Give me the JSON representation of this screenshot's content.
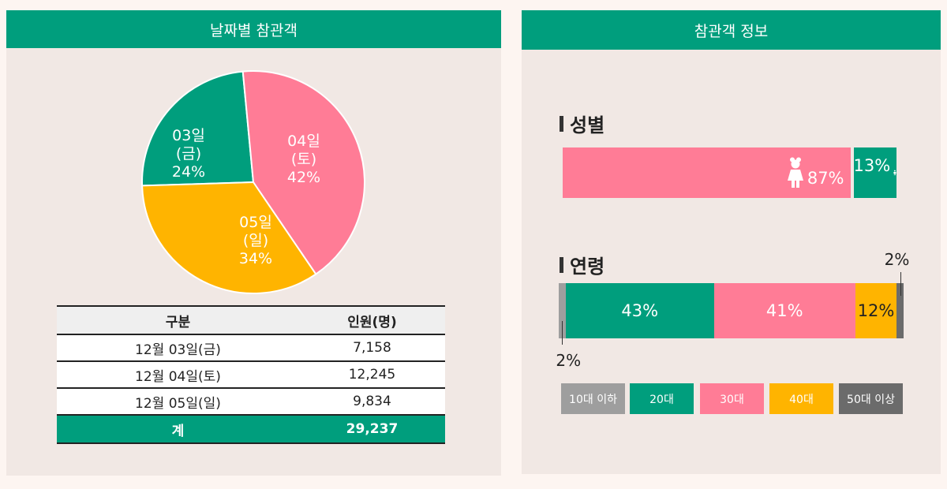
{
  "left_panel": {
    "title": "날짜별 참관객"
  },
  "right_panel": {
    "title": "참관객 정보"
  },
  "colors": {
    "green": "#009e7d",
    "pink": "#ff7c96",
    "yellow": "#ffb400",
    "gray_light": "#9e9e9e",
    "gray_dark": "#6b6b6b"
  },
  "chart_data": [
    {
      "type": "pie",
      "slices": [
        {
          "label": "03일\n(금)\n24%",
          "value": 24,
          "color": "#009e7d"
        },
        {
          "label": "04일\n(토)\n42%",
          "value": 42,
          "color": "#ff7c96"
        },
        {
          "label": "05일\n(일)\n34%",
          "value": 34,
          "color": "#ffb400"
        }
      ]
    },
    {
      "type": "bar",
      "title": "성별",
      "stacked": true,
      "segments": [
        {
          "label": "87%",
          "value": 87,
          "color": "#ff7c96",
          "icon": "female-person-icon"
        },
        {
          "label": "13%",
          "value": 13,
          "color": "#009e7d",
          "icon": "male-person-icon"
        }
      ]
    },
    {
      "type": "bar",
      "title": "연령",
      "stacked": true,
      "segments": [
        {
          "label": "2%",
          "value": 2,
          "color": "#9e9e9e"
        },
        {
          "label": "43%",
          "value": 43,
          "color": "#009e7d"
        },
        {
          "label": "41%",
          "value": 41,
          "color": "#ff7c96"
        },
        {
          "label": "12%",
          "value": 12,
          "color": "#ffb400"
        },
        {
          "label": "2%",
          "value": 2,
          "color": "#6b6b6b"
        }
      ],
      "legend": [
        {
          "label": "10대 이하",
          "color": "#9e9e9e"
        },
        {
          "label": "20대",
          "color": "#009e7d"
        },
        {
          "label": "30대",
          "color": "#ff7c96"
        },
        {
          "label": "40대",
          "color": "#ffb400"
        },
        {
          "label": "50대 이상",
          "color": "#6b6b6b"
        }
      ]
    }
  ],
  "table": {
    "headers": [
      "구분",
      "인원(명)"
    ],
    "rows": [
      {
        "date": "12월 03일(금)",
        "count": "7,158"
      },
      {
        "date": "12월 04일(토)",
        "count": "12,245"
      },
      {
        "date": "12월 05일(일)",
        "count": "9,834"
      }
    ],
    "total": {
      "label": "계",
      "count": "29,237"
    }
  }
}
